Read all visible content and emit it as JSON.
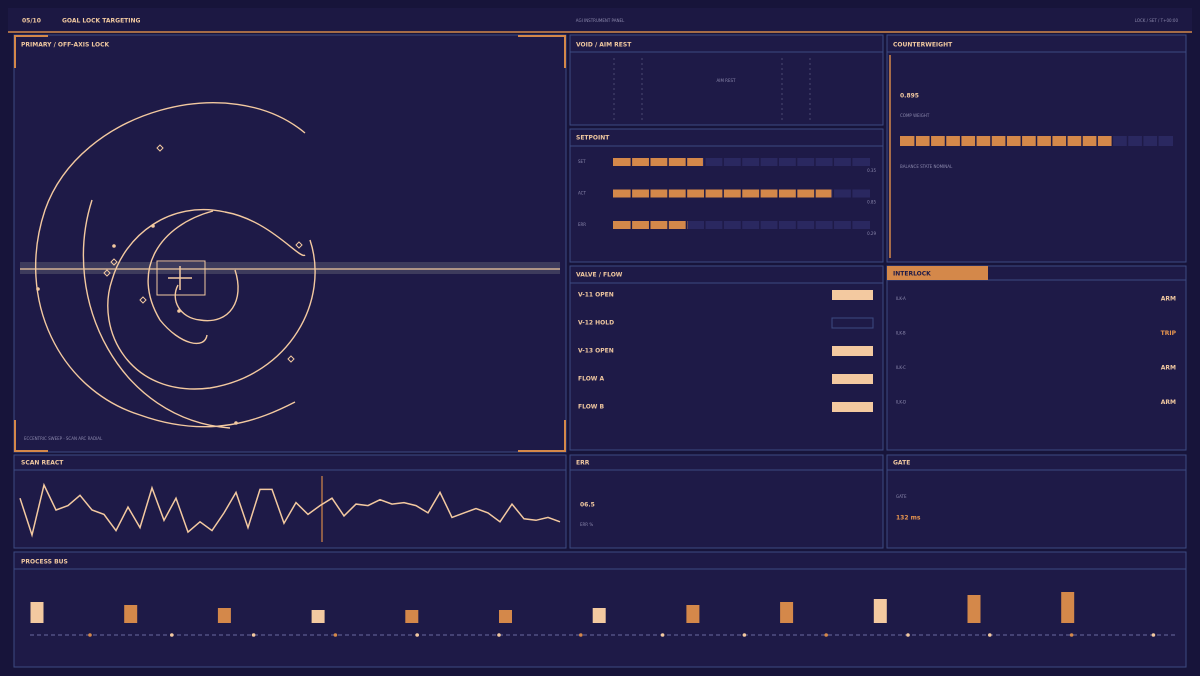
{
  "header": {
    "index": "05/10",
    "title": "GOAL LOCK TARGETING",
    "center": "AGI INSTRUMENT PANEL",
    "status": "LOCK / SET / T+00:00"
  },
  "primary": {
    "title": "PRIMARY / OFF-AXIS LOCK",
    "footer": "ECCENTRIC SWEEP · SCAN ARC RADIAL"
  },
  "void": {
    "title": "VOID / AIM REST",
    "label": "AIM REST"
  },
  "counterweight": {
    "title": "COUNTERWEIGHT",
    "value": "0.895",
    "label": "COMP WEIGHT",
    "note": "BALANCE STATE NOMINAL",
    "fill": 0.78
  },
  "setpoint": {
    "title": "SETPOINT",
    "rows": [
      {
        "label": "SET",
        "value": 0.35
      },
      {
        "label": "ACT",
        "value": 0.85
      },
      {
        "label": "ERR",
        "value": 0.29
      }
    ]
  },
  "valve": {
    "title": "VALVE / FLOW",
    "rows": [
      {
        "label": "V-11 OPEN",
        "on": true
      },
      {
        "label": "V-12 HOLD",
        "on": false
      },
      {
        "label": "V-13 OPEN",
        "on": true
      },
      {
        "label": "FLOW A",
        "on": true
      },
      {
        "label": "FLOW B",
        "on": true
      }
    ]
  },
  "interlock": {
    "title": "INTERLOCK",
    "rows": [
      {
        "label": "ILK-A",
        "state": "ARM"
      },
      {
        "label": "ILK-B",
        "state": "TRIP"
      },
      {
        "label": "ILK-C",
        "state": "ARM"
      },
      {
        "label": "ILK-D",
        "state": "ARM"
      }
    ]
  },
  "scan": {
    "title": "SCAN REACT",
    "values": [
      43,
      18,
      52,
      35,
      38,
      45,
      35,
      32,
      21,
      37,
      23,
      50,
      28,
      43,
      20,
      27,
      21,
      33,
      47,
      23,
      49,
      49,
      26,
      40,
      32,
      38,
      43,
      31,
      39,
      38,
      42,
      39,
      40,
      38,
      33,
      47,
      30,
      33,
      36,
      33,
      27,
      39,
      29,
      28,
      30,
      27
    ]
  },
  "err": {
    "title": "ERR",
    "value": "06.5",
    "label": "ERR %"
  },
  "gate": {
    "title": "GATE",
    "label": "GATE",
    "value": "132 ms"
  },
  "bus": {
    "title": "PROCESS BUS",
    "values": [
      21,
      18,
      15,
      13,
      13,
      13,
      15,
      18,
      21,
      24,
      28,
      31
    ],
    "colors": [
      "#f3c9a0",
      "#d4884a",
      "#d4884a",
      "#f3c9a0",
      "#d4884a",
      "#d4884a",
      "#f3c9a0",
      "#d4884a",
      "#d4884a",
      "#f3c9a0",
      "#d4884a",
      "#d4884a"
    ]
  }
}
